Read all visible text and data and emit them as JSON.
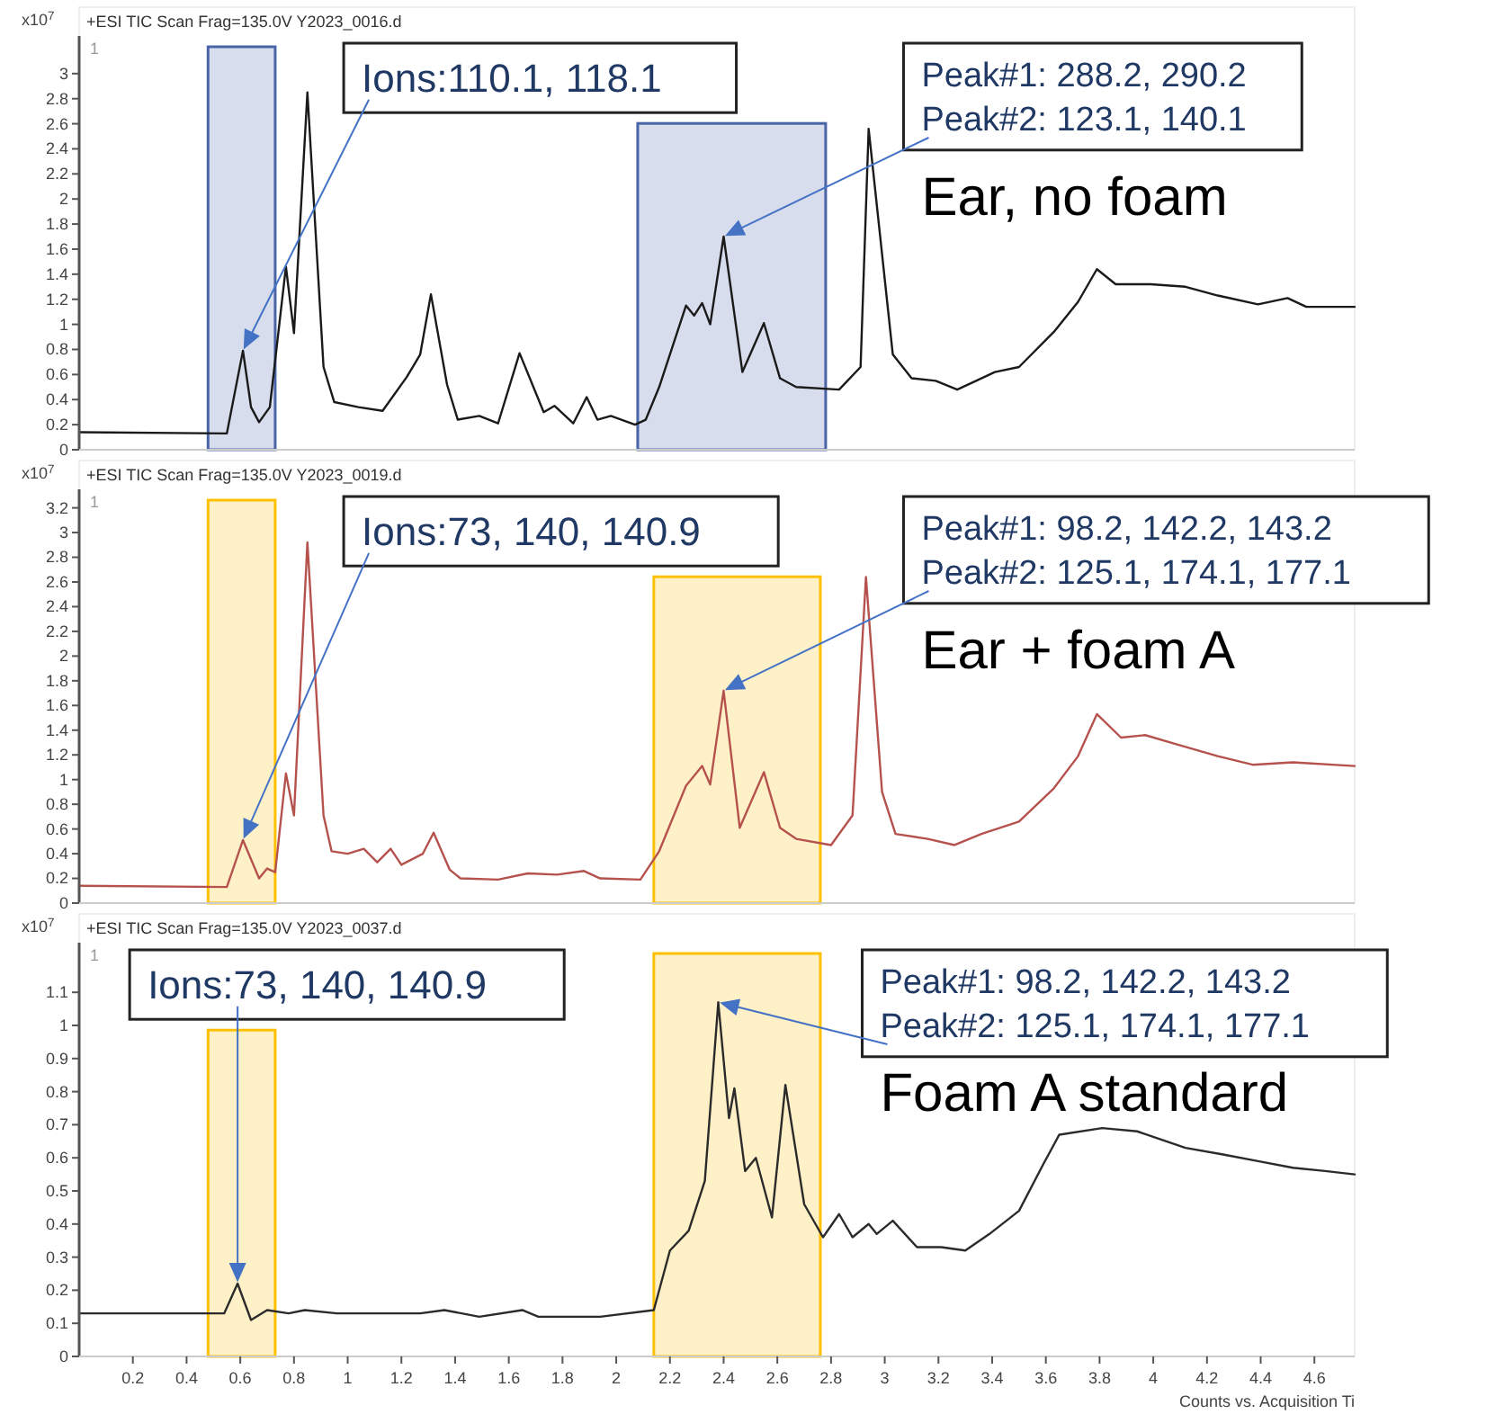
{
  "chart_data": [
    {
      "type": "line",
      "title": "+ESI TIC Scan Frag=135.0V Y2023_0016.d",
      "subtitle": "Ear, no foam",
      "ylabel": "x10$^{7}$",
      "xlim": [
        0,
        4.75
      ],
      "ylim": [
        0,
        3.3
      ],
      "yticks": [
        0,
        0.2,
        0.4,
        0.6,
        0.8,
        1,
        1.2,
        1.4,
        1.6,
        1.8,
        2,
        2.2,
        2.4,
        2.6,
        2.8,
        3
      ],
      "tick_labels": "y",
      "grid": false,
      "series": [
        {
          "color": "#1a1a1a",
          "x": [
            0,
            0.55,
            0.61,
            0.64,
            0.67,
            0.71,
            0.77,
            0.8,
            0.85,
            0.91,
            0.95,
            1.04,
            1.13,
            1.22,
            1.27,
            1.31,
            1.37,
            1.41,
            1.49,
            1.56,
            1.64,
            1.73,
            1.77,
            1.84,
            1.89,
            1.93,
            1.98,
            2.07,
            2.11,
            2.16,
            2.26,
            2.29,
            2.32,
            2.35,
            2.4,
            2.47,
            2.55,
            2.61,
            2.67,
            2.83,
            2.91,
            2.94,
            3.03,
            3.1,
            3.19,
            3.27,
            3.41,
            3.5,
            3.63,
            3.72,
            3.79,
            3.86,
            3.99,
            4.12,
            4.24,
            4.39,
            4.5,
            4.57,
            4.75
          ],
          "values": [
            0.14,
            0.13,
            0.79,
            0.34,
            0.22,
            0.34,
            1.46,
            0.93,
            2.85,
            0.66,
            0.38,
            0.34,
            0.31,
            0.58,
            0.76,
            1.24,
            0.52,
            0.24,
            0.27,
            0.21,
            0.77,
            0.3,
            0.35,
            0.21,
            0.42,
            0.24,
            0.27,
            0.2,
            0.24,
            0.5,
            1.15,
            1.07,
            1.17,
            1.0,
            1.7,
            0.62,
            1.01,
            0.57,
            0.5,
            0.48,
            0.66,
            2.56,
            0.76,
            0.57,
            0.55,
            0.48,
            0.62,
            0.66,
            0.94,
            1.18,
            1.44,
            1.32,
            1.32,
            1.3,
            1.23,
            1.16,
            1.21,
            1.14,
            1.14
          ]
        }
      ],
      "bands": [
        {
          "axis": "x",
          "from": 0.48,
          "to": 0.73,
          "color": "#4a64a8"
        },
        {
          "axis": "x",
          "from": 2.08,
          "to": 2.78,
          "color": "#4a64a8"
        }
      ],
      "annotations": [
        "1",
        "Ions:110.1, 118.1",
        "Peak#1: 288.2, 290.2\nPeak#2: 123.1, 140.1"
      ]
    },
    {
      "type": "line",
      "title": "+ESI TIC Scan Frag=135.0V Y2023_0019.d",
      "subtitle": "Ear + foam A",
      "ylabel": "x10$^{7}$",
      "xlim": [
        0,
        4.75
      ],
      "ylim": [
        0,
        3.35
      ],
      "yticks": [
        0,
        0.2,
        0.4,
        0.6,
        0.8,
        1,
        1.2,
        1.4,
        1.6,
        1.8,
        2,
        2.2,
        2.4,
        2.6,
        2.8,
        3,
        3.2
      ],
      "tick_labels": "y",
      "grid": false,
      "series": [
        {
          "color": "#b5524e",
          "x": [
            0,
            0.55,
            0.61,
            0.67,
            0.7,
            0.73,
            0.77,
            0.8,
            0.85,
            0.91,
            0.94,
            1.0,
            1.06,
            1.11,
            1.16,
            1.2,
            1.28,
            1.32,
            1.38,
            1.42,
            1.56,
            1.67,
            1.78,
            1.88,
            1.94,
            2.09,
            2.16,
            2.26,
            2.32,
            2.35,
            2.4,
            2.46,
            2.55,
            2.61,
            2.67,
            2.8,
            2.88,
            2.93,
            2.99,
            3.04,
            3.16,
            3.26,
            3.36,
            3.5,
            3.63,
            3.72,
            3.79,
            3.88,
            3.97,
            4.08,
            4.24,
            4.37,
            4.52,
            4.75
          ],
          "values": [
            0.14,
            0.13,
            0.51,
            0.2,
            0.28,
            0.25,
            1.05,
            0.71,
            2.92,
            0.71,
            0.42,
            0.4,
            0.44,
            0.33,
            0.44,
            0.31,
            0.4,
            0.57,
            0.27,
            0.2,
            0.19,
            0.24,
            0.23,
            0.26,
            0.2,
            0.19,
            0.42,
            0.95,
            1.11,
            0.96,
            1.72,
            0.61,
            1.06,
            0.61,
            0.52,
            0.47,
            0.71,
            2.64,
            0.9,
            0.56,
            0.52,
            0.47,
            0.56,
            0.66,
            0.93,
            1.19,
            1.53,
            1.34,
            1.36,
            1.29,
            1.19,
            1.12,
            1.14,
            1.11
          ]
        }
      ],
      "bands": [
        {
          "axis": "x",
          "from": 0.48,
          "to": 0.73,
          "color": "#ffc000"
        },
        {
          "axis": "x",
          "from": 2.14,
          "to": 2.76,
          "color": "#ffc000"
        }
      ],
      "annotations": [
        "1",
        "Ions:73, 140, 140.9",
        "Peak#1: 98.2, 142.2, 143.2\nPeak#2: 125.1, 174.1, 177.1"
      ]
    },
    {
      "type": "line",
      "title": "+ESI TIC Scan Frag=135.0V Y2023_0037.d",
      "subtitle": "Foam A standard",
      "ylabel": "x10$^{7}$",
      "xlabel": "Counts vs. Acquisition Ti",
      "xlim": [
        0,
        4.75
      ],
      "ylim": [
        0,
        1.25
      ],
      "xticks": [
        0.2,
        0.4,
        0.6,
        0.8,
        1,
        1.2,
        1.4,
        1.6,
        1.8,
        2,
        2.2,
        2.4,
        2.6,
        2.8,
        3,
        3.2,
        3.4,
        3.6,
        3.8,
        4,
        4.2,
        4.4,
        4.6
      ],
      "yticks": [
        0,
        0.1,
        0.2,
        0.3,
        0.4,
        0.5,
        0.6,
        0.7,
        0.8,
        0.9,
        1,
        1.1
      ],
      "grid": false,
      "series": [
        {
          "color": "#2b2b2b",
          "x": [
            0,
            0.54,
            0.59,
            0.64,
            0.7,
            0.78,
            0.84,
            0.96,
            1.27,
            1.36,
            1.49,
            1.65,
            1.71,
            1.94,
            2.14,
            2.2,
            2.27,
            2.33,
            2.38,
            2.42,
            2.44,
            2.48,
            2.52,
            2.58,
            2.63,
            2.7,
            2.77,
            2.83,
            2.88,
            2.94,
            2.97,
            3.03,
            3.12,
            3.21,
            3.3,
            3.39,
            3.5,
            3.59,
            3.65,
            3.81,
            3.94,
            4.12,
            4.26,
            4.39,
            4.52,
            4.64,
            4.75
          ],
          "values": [
            0.13,
            0.13,
            0.22,
            0.11,
            0.14,
            0.13,
            0.14,
            0.13,
            0.13,
            0.14,
            0.12,
            0.14,
            0.12,
            0.12,
            0.14,
            0.32,
            0.38,
            0.53,
            1.07,
            0.72,
            0.81,
            0.56,
            0.6,
            0.42,
            0.82,
            0.46,
            0.36,
            0.43,
            0.36,
            0.4,
            0.37,
            0.41,
            0.33,
            0.33,
            0.32,
            0.37,
            0.44,
            0.58,
            0.67,
            0.69,
            0.68,
            0.63,
            0.61,
            0.59,
            0.57,
            0.56,
            0.55
          ]
        }
      ],
      "bands": [
        {
          "axis": "x",
          "from": 0.48,
          "to": 0.73,
          "color": "#ffc000"
        },
        {
          "axis": "x",
          "from": 2.14,
          "to": 2.76,
          "color": "#ffc000"
        }
      ],
      "annotations": [
        "1",
        "Ions:73, 140, 140.9",
        "Peak#1: 98.2, 142.2, 143.2\nPeak#2: 125.1, 174.1, 177.1"
      ]
    }
  ]
}
